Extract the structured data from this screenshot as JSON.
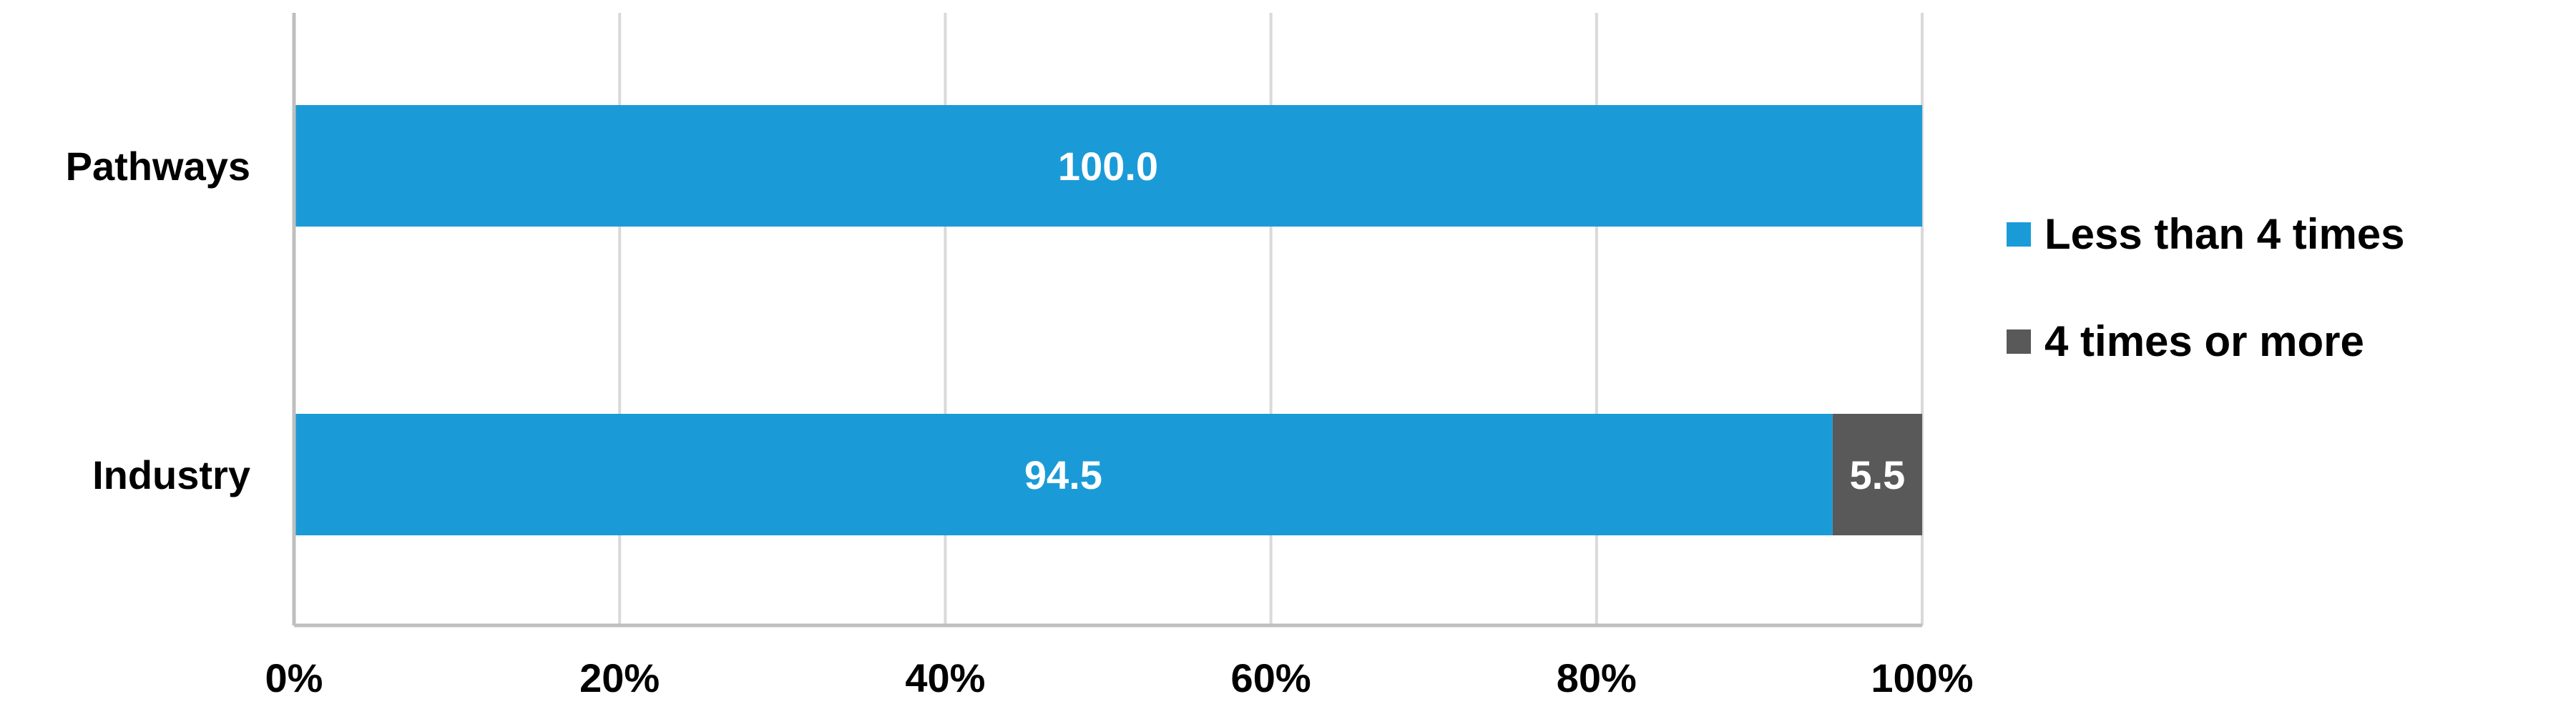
{
  "chart_data": {
    "type": "bar",
    "orientation": "horizontal",
    "stacked": "percent",
    "categories": [
      "Pathways",
      "Industry"
    ],
    "series": [
      {
        "name": "Less than 4 times",
        "values": [
          100.0,
          94.5
        ],
        "color": "#1A9BD7",
        "label_color": "#ffffff"
      },
      {
        "name": "4 times or more",
        "values": [
          0.0,
          5.5
        ],
        "color": "#595959",
        "label_color": "#ffffff"
      }
    ],
    "xlim": [
      0,
      100
    ],
    "x_ticks": [
      "0%",
      "20%",
      "40%",
      "60%",
      "80%",
      "100%"
    ],
    "grid": true,
    "legend_position": "right"
  }
}
